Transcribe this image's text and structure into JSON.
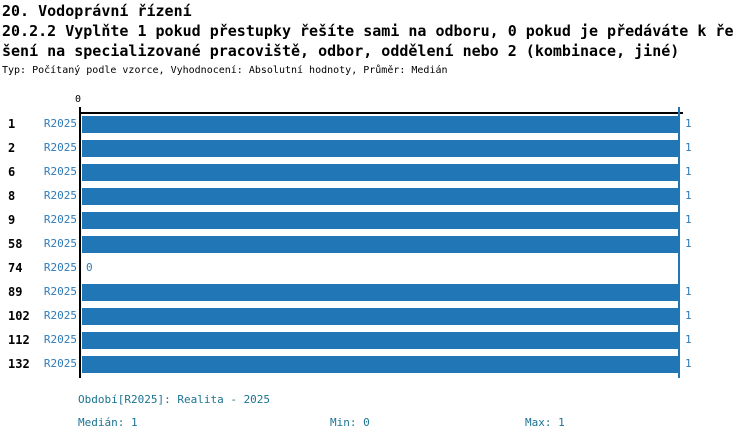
{
  "header": {
    "title": "20. Vodoprávní řízení",
    "question_line1": "20.2.2 Vyplňte 1 pokud přestupky řešíte sami na odboru, 0 pokud je předáváte k ře",
    "question_line2": "šení na specializované pracoviště, odbor, oddělení nebo 2 (kombinace, jiné)",
    "meta": "Typ: Počítaný podle vzorce, Vyhodnocení: Absolutní hodnoty, Průměr: Medián"
  },
  "chart_data": {
    "type": "bar",
    "orientation": "horizontal",
    "categories": [
      "1",
      "2",
      "6",
      "8",
      "9",
      "58",
      "74",
      "89",
      "102",
      "112",
      "132"
    ],
    "series": [
      {
        "name": "R2025",
        "values": [
          1,
          1,
          1,
          1,
          1,
          1,
          0,
          1,
          1,
          1,
          1
        ]
      }
    ],
    "value_labels": [
      "1",
      "1",
      "1",
      "1",
      "1",
      "1",
      "0",
      "1",
      "1",
      "1",
      "1"
    ],
    "xlim": [
      0,
      1
    ],
    "x_tick_labels": [
      "0"
    ],
    "x_tick_zero": "0",
    "grid": false,
    "reference_line_value": 1,
    "bar_color": "#2176b5",
    "label_color": "#2e7ab8",
    "axis_color": "#000000"
  },
  "footer": {
    "period": "Období[R2025]: Realita - 2025",
    "median": "Medián: 1",
    "min": "Min: 0",
    "max": "Max: 1",
    "text_color": "#1b7391"
  }
}
